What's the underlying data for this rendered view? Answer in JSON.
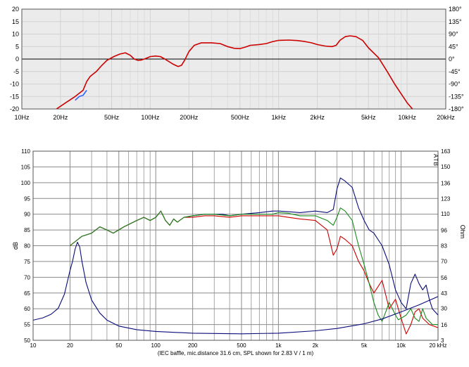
{
  "chart_data": [
    {
      "type": "line",
      "title": "",
      "x_scale": "log",
      "xlim": [
        10,
        20000
      ],
      "ylim": [
        -20,
        20
      ],
      "y2lim": [
        -180,
        180
      ],
      "grid": true,
      "x_ticks": [
        "10Hz",
        "20Hz",
        "50Hz",
        "100Hz",
        "200Hz",
        "500Hz",
        "1kHz",
        "2kHz",
        "5kHz",
        "10kHz",
        "20kHz"
      ],
      "y_ticks": [
        "20",
        "15",
        "10",
        "5",
        "0",
        "-5",
        "-10",
        "-15",
        "-20"
      ],
      "y2_ticks": [
        "180°",
        "135°",
        "90°",
        "45°",
        "0°",
        "-45°",
        "-90°",
        "-135°",
        "-180°"
      ],
      "series": [
        {
          "color": "#cc0000",
          "points": [
            [
              18.6,
              -20
            ],
            [
              22,
              -17.5
            ],
            [
              26,
              -15
            ],
            [
              30,
              -12.5
            ],
            [
              32,
              -9
            ],
            [
              34,
              -7
            ],
            [
              38,
              -5
            ],
            [
              42,
              -2.5
            ],
            [
              46,
              -0.5
            ],
            [
              52,
              1
            ],
            [
              58,
              2
            ],
            [
              64,
              2.5
            ],
            [
              70,
              1.5
            ],
            [
              75,
              0
            ],
            [
              80,
              -0.5
            ],
            [
              85,
              -0.4
            ],
            [
              90,
              0
            ],
            [
              100,
              1
            ],
            [
              110,
              1.2
            ],
            [
              120,
              1
            ],
            [
              130,
              0
            ],
            [
              150,
              -2
            ],
            [
              165,
              -3
            ],
            [
              175,
              -2.5
            ],
            [
              185,
              -0.5
            ],
            [
              200,
              3
            ],
            [
              220,
              5.5
            ],
            [
              250,
              6.5
            ],
            [
              300,
              6.5
            ],
            [
              350,
              6.2
            ],
            [
              400,
              5
            ],
            [
              450,
              4.3
            ],
            [
              500,
              4.2
            ],
            [
              550,
              4.8
            ],
            [
              600,
              5.5
            ],
            [
              700,
              5.8
            ],
            [
              800,
              6.2
            ],
            [
              900,
              7
            ],
            [
              1000,
              7.5
            ],
            [
              1200,
              7.6
            ],
            [
              1400,
              7.4
            ],
            [
              1600,
              7
            ],
            [
              1800,
              6.5
            ],
            [
              2000,
              5.8
            ],
            [
              2300,
              5.2
            ],
            [
              2600,
              5
            ],
            [
              2800,
              5.5
            ],
            [
              3000,
              7.5
            ],
            [
              3300,
              9
            ],
            [
              3600,
              9.3
            ],
            [
              4000,
              9
            ],
            [
              4500,
              7.5
            ],
            [
              5000,
              4.5
            ],
            [
              6000,
              0.5
            ],
            [
              7000,
              -5
            ],
            [
              8000,
              -10
            ],
            [
              9000,
              -14
            ],
            [
              10000,
              -17.5
            ],
            [
              11000,
              -20
            ]
          ]
        },
        {
          "color": "#3366ff",
          "points": [
            [
              26,
              -16.5
            ],
            [
              28,
              -15
            ],
            [
              30,
              -14.5
            ],
            [
              32,
              -12.5
            ]
          ]
        }
      ]
    },
    {
      "type": "line",
      "title": "",
      "x_scale": "log",
      "xlim": [
        10,
        20000
      ],
      "ylim": [
        50,
        110
      ],
      "y2lim": [
        3,
        163
      ],
      "grid": true,
      "ylabel": "dB",
      "y2label": "Ohm",
      "xlabel": "(IEC baffle, mic.distance 31.6 cm, SPL shown for 2.83 V / 1 m)",
      "watermark": "ATB",
      "x_ticks": [
        "10",
        "20",
        "50",
        "100",
        "200",
        "500",
        "1k",
        "2k",
        "5k",
        "10k",
        "20 kHz"
      ],
      "y_ticks": [
        "110",
        "105",
        "100",
        "95",
        "90",
        "85",
        "80",
        "75",
        "70",
        "65",
        "60",
        "55",
        "50"
      ],
      "y2_ticks": [
        "163",
        "150",
        "136",
        "123",
        "110",
        "96",
        "83",
        "70",
        "56",
        "43",
        "30",
        "16",
        "3"
      ],
      "series": [
        {
          "color": "#0b0b7a",
          "points": [
            [
              20,
              80
            ],
            [
              25,
              83
            ],
            [
              30,
              84
            ],
            [
              35,
              86
            ],
            [
              40,
              85
            ],
            [
              45,
              84
            ],
            [
              55,
              86
            ],
            [
              70,
              88
            ],
            [
              80,
              89
            ],
            [
              90,
              88
            ],
            [
              100,
              89
            ],
            [
              110,
              91
            ],
            [
              120,
              88
            ],
            [
              130,
              86.5
            ],
            [
              140,
              88.5
            ],
            [
              150,
              87.5
            ],
            [
              170,
              89
            ],
            [
              200,
              89.5
            ],
            [
              250,
              90
            ],
            [
              300,
              90
            ],
            [
              350,
              90
            ],
            [
              400,
              89.5
            ],
            [
              500,
              90
            ],
            [
              700,
              90.5
            ],
            [
              900,
              91
            ],
            [
              1000,
              91
            ],
            [
              1200,
              90.8
            ],
            [
              1500,
              90.5
            ],
            [
              2000,
              91
            ],
            [
              2500,
              90.5
            ],
            [
              2800,
              91.5
            ],
            [
              3000,
              98
            ],
            [
              3200,
              101.5
            ],
            [
              3500,
              100.5
            ],
            [
              4000,
              98.5
            ],
            [
              4500,
              92
            ],
            [
              5000,
              88
            ],
            [
              5500,
              85
            ],
            [
              6000,
              84
            ],
            [
              7000,
              80
            ],
            [
              8000,
              74
            ],
            [
              9000,
              66
            ],
            [
              10000,
              62
            ],
            [
              11000,
              60
            ],
            [
              12000,
              68
            ],
            [
              13000,
              71
            ],
            [
              14000,
              68
            ],
            [
              15000,
              66
            ],
            [
              16000,
              67.5
            ],
            [
              17000,
              63
            ],
            [
              18000,
              60
            ],
            [
              20000,
              58
            ]
          ]
        },
        {
          "color": "#cc0000",
          "points": [
            [
              20,
              80
            ],
            [
              25,
              83
            ],
            [
              30,
              84
            ],
            [
              35,
              86
            ],
            [
              40,
              85
            ],
            [
              45,
              84
            ],
            [
              55,
              86
            ],
            [
              70,
              88
            ],
            [
              80,
              89
            ],
            [
              90,
              88
            ],
            [
              100,
              89
            ],
            [
              110,
              91
            ],
            [
              120,
              88
            ],
            [
              130,
              86.5
            ],
            [
              140,
              88.5
            ],
            [
              150,
              87.5
            ],
            [
              170,
              89
            ],
            [
              200,
              89
            ],
            [
              250,
              89.5
            ],
            [
              300,
              89.5
            ],
            [
              400,
              89
            ],
            [
              500,
              89.5
            ],
            [
              700,
              89.5
            ],
            [
              900,
              89.5
            ],
            [
              1000,
              89.5
            ],
            [
              1200,
              89
            ],
            [
              1500,
              88.5
            ],
            [
              2000,
              88
            ],
            [
              2500,
              85
            ],
            [
              2800,
              77
            ],
            [
              3000,
              79
            ],
            [
              3200,
              83
            ],
            [
              3500,
              82
            ],
            [
              4000,
              80
            ],
            [
              4500,
              75
            ],
            [
              5000,
              72
            ],
            [
              5500,
              68
            ],
            [
              6000,
              65
            ],
            [
              7000,
              69
            ],
            [
              8000,
              60
            ],
            [
              9000,
              63
            ],
            [
              10000,
              57
            ],
            [
              11000,
              52
            ],
            [
              12000,
              55
            ],
            [
              13000,
              59
            ],
            [
              14000,
              60
            ],
            [
              15000,
              57
            ],
            [
              17000,
              55
            ],
            [
              20000,
              54
            ]
          ]
        },
        {
          "color": "#1a8a1a",
          "points": [
            [
              20,
              80
            ],
            [
              25,
              83
            ],
            [
              30,
              84
            ],
            [
              35,
              86
            ],
            [
              40,
              85
            ],
            [
              45,
              84
            ],
            [
              55,
              86
            ],
            [
              70,
              88
            ],
            [
              80,
              89
            ],
            [
              90,
              88
            ],
            [
              100,
              89
            ],
            [
              110,
              91
            ],
            [
              120,
              88
            ],
            [
              130,
              86.5
            ],
            [
              140,
              88.5
            ],
            [
              150,
              87.5
            ],
            [
              170,
              89
            ],
            [
              200,
              89.5
            ],
            [
              250,
              90
            ],
            [
              300,
              90
            ],
            [
              400,
              89.5
            ],
            [
              500,
              90
            ],
            [
              700,
              90
            ],
            [
              900,
              90
            ],
            [
              1000,
              90.5
            ],
            [
              1200,
              90.3
            ],
            [
              1500,
              89.5
            ],
            [
              2000,
              89.5
            ],
            [
              2500,
              88
            ],
            [
              2800,
              86.5
            ],
            [
              3000,
              89
            ],
            [
              3200,
              92
            ],
            [
              3500,
              91
            ],
            [
              4000,
              88
            ],
            [
              4500,
              80
            ],
            [
              5000,
              74
            ],
            [
              5500,
              68
            ],
            [
              6000,
              62
            ],
            [
              6500,
              58
            ],
            [
              7000,
              56
            ],
            [
              7500,
              59
            ],
            [
              8000,
              62
            ],
            [
              8500,
              60
            ],
            [
              9000,
              58
            ],
            [
              9500,
              56.5
            ],
            [
              10000,
              57
            ],
            [
              11000,
              58
            ],
            [
              12000,
              60
            ],
            [
              13000,
              57
            ],
            [
              14000,
              56
            ],
            [
              15000,
              60
            ],
            [
              16000,
              57
            ],
            [
              17000,
              56
            ],
            [
              18000,
              55
            ],
            [
              20000,
              55
            ]
          ]
        },
        {
          "name": "Ohm",
          "color": "#0b0b7a",
          "axis": "right",
          "points": [
            [
              10,
              20
            ],
            [
              12,
              22
            ],
            [
              14,
              25
            ],
            [
              16,
              30
            ],
            [
              18,
              42
            ],
            [
              20,
              62
            ],
            [
              21,
              70
            ],
            [
              22,
              80
            ],
            [
              23,
              86
            ],
            [
              24,
              82
            ],
            [
              25,
              70
            ],
            [
              27,
              52
            ],
            [
              30,
              37
            ],
            [
              35,
              26
            ],
            [
              40,
              20
            ],
            [
              50,
              15
            ],
            [
              70,
              12
            ],
            [
              100,
              10.5
            ],
            [
              200,
              9
            ],
            [
              500,
              8.5
            ],
            [
              1000,
              9
            ],
            [
              2000,
              11
            ],
            [
              3000,
              13
            ],
            [
              5000,
              17
            ],
            [
              7000,
              21
            ],
            [
              10000,
              27
            ],
            [
              14000,
              33
            ],
            [
              20000,
              40
            ]
          ]
        }
      ]
    }
  ]
}
